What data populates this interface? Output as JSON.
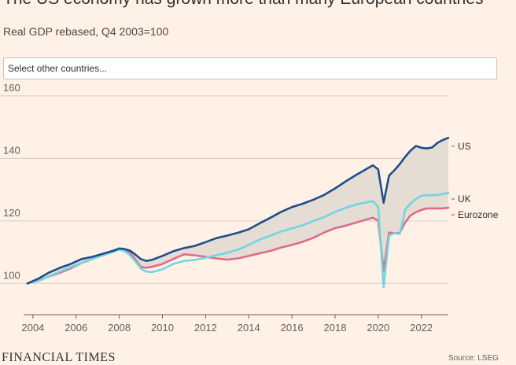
{
  "header": {
    "title": "The US economy has grown more than many European countries",
    "subtitle": "Real GDP rebased, Q4 2003=100"
  },
  "search": {
    "placeholder": "Select other countries..."
  },
  "footer": {
    "brand": "FINANCIAL TIMES",
    "source": "Source: LSEG"
  },
  "colors": {
    "background": "#fff1e5",
    "US": "#1f4e8c",
    "UK": "#6fd6e2",
    "Eurozone": "#e06a8c",
    "shade": "#e5dcd4",
    "grid": "#d6cbc3"
  },
  "chart_data": {
    "type": "line",
    "title": "The US economy has grown more than many European countries",
    "subtitle": "Real GDP rebased, Q4 2003=100",
    "xlim": [
      2003.75,
      2023.25
    ],
    "ylim": [
      90,
      163
    ],
    "grid": true,
    "y_ticks": [
      100,
      120,
      140,
      160
    ],
    "x_ticks": [
      2004,
      2006,
      2008,
      2010,
      2012,
      2014,
      2016,
      2018,
      2020,
      2022
    ],
    "shaded_band": "between US and Eurozone",
    "series": [
      {
        "name": "US",
        "x": [
          2003.75,
          2004.25,
          2004.75,
          2005.25,
          2005.75,
          2006.25,
          2006.75,
          2007.25,
          2007.75,
          2008.0,
          2008.25,
          2008.5,
          2008.75,
          2009.0,
          2009.25,
          2009.5,
          2010.0,
          2010.5,
          2011.0,
          2011.5,
          2012.0,
          2012.5,
          2013.0,
          2013.5,
          2014.0,
          2014.5,
          2015.0,
          2015.5,
          2016.0,
          2016.5,
          2017.0,
          2017.5,
          2018.0,
          2018.5,
          2019.0,
          2019.5,
          2019.75,
          2020.0,
          2020.25,
          2020.5,
          2020.75,
          2021.0,
          2021.25,
          2021.5,
          2021.75,
          2022.0,
          2022.25,
          2022.5,
          2022.75,
          2023.0,
          2023.25
        ],
        "values": [
          100.0,
          101.5,
          103.5,
          105.0,
          106.2,
          107.8,
          108.5,
          109.5,
          110.5,
          111.2,
          111.0,
          110.5,
          109.2,
          107.8,
          107.2,
          107.5,
          108.8,
          110.3,
          111.3,
          112.0,
          113.2,
          114.5,
          115.3,
          116.2,
          117.3,
          119.2,
          121.0,
          122.9,
          124.4,
          125.5,
          126.8,
          128.3,
          130.4,
          132.7,
          134.8,
          136.8,
          137.8,
          136.5,
          125.8,
          134.5,
          136.2,
          138.2,
          140.5,
          142.5,
          144.0,
          143.4,
          143.2,
          143.5,
          145.0,
          145.9,
          146.6
        ]
      },
      {
        "name": "UK",
        "x": [
          2003.75,
          2004.25,
          2004.75,
          2005.25,
          2005.75,
          2006.25,
          2006.75,
          2007.25,
          2007.75,
          2008.0,
          2008.25,
          2008.5,
          2008.75,
          2009.0,
          2009.25,
          2009.5,
          2010.0,
          2010.5,
          2011.0,
          2011.5,
          2012.0,
          2012.5,
          2013.0,
          2013.5,
          2014.0,
          2014.5,
          2015.0,
          2015.5,
          2016.0,
          2016.5,
          2017.0,
          2017.5,
          2018.0,
          2018.5,
          2019.0,
          2019.5,
          2019.75,
          2020.0,
          2020.25,
          2020.5,
          2020.75,
          2021.0,
          2021.25,
          2021.5,
          2021.75,
          2022.0,
          2022.25,
          2022.5,
          2022.75,
          2023.0,
          2023.25
        ],
        "values": [
          100.0,
          100.8,
          102.2,
          103.8,
          105.2,
          106.5,
          107.8,
          109.0,
          110.2,
          110.8,
          110.3,
          109.0,
          107.0,
          104.8,
          103.8,
          103.6,
          104.5,
          106.2,
          107.2,
          107.5,
          108.2,
          109.0,
          109.8,
          110.8,
          112.3,
          114.0,
          115.3,
          116.6,
          117.6,
          118.6,
          120.0,
          121.2,
          122.9,
          124.2,
          125.3,
          126.0,
          126.3,
          124.5,
          98.8,
          115.2,
          116.1,
          115.8,
          123.6,
          125.6,
          127.0,
          128.0,
          128.2,
          128.2,
          128.3,
          128.6,
          129.0
        ]
      },
      {
        "name": "Eurozone",
        "x": [
          2003.75,
          2004.25,
          2004.75,
          2005.25,
          2005.75,
          2006.25,
          2006.75,
          2007.25,
          2007.75,
          2008.0,
          2008.25,
          2008.5,
          2008.75,
          2009.0,
          2009.25,
          2009.5,
          2010.0,
          2010.5,
          2011.0,
          2011.5,
          2012.0,
          2012.5,
          2013.0,
          2013.5,
          2014.0,
          2014.5,
          2015.0,
          2015.5,
          2016.0,
          2016.5,
          2017.0,
          2017.5,
          2018.0,
          2018.5,
          2019.0,
          2019.5,
          2019.75,
          2020.0,
          2020.25,
          2020.5,
          2020.75,
          2021.0,
          2021.25,
          2021.5,
          2021.75,
          2022.0,
          2022.25,
          2022.5,
          2022.75,
          2023.0,
          2023.25
        ],
        "values": [
          100.0,
          101.0,
          102.2,
          103.4,
          104.8,
          106.5,
          107.8,
          109.3,
          110.6,
          111.0,
          110.8,
          109.8,
          107.6,
          105.3,
          105.0,
          105.3,
          106.2,
          107.8,
          109.3,
          109.0,
          108.5,
          108.0,
          107.6,
          108.0,
          108.8,
          109.6,
          110.4,
          111.5,
          112.3,
          113.3,
          114.6,
          116.3,
          117.7,
          118.5,
          119.5,
          120.5,
          121.0,
          120.0,
          104.0,
          116.3,
          116.0,
          116.2,
          119.5,
          121.8,
          122.8,
          123.5,
          124.0,
          124.0,
          124.0,
          124.0,
          124.2
        ]
      }
    ],
    "end_labels": [
      "US",
      "UK",
      "Eurozone"
    ]
  }
}
